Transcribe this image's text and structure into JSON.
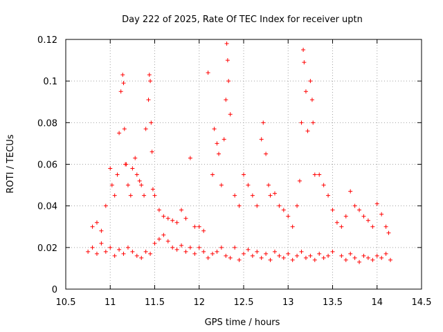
{
  "chart_data": {
    "type": "scatter",
    "title": "Day 222 of 2025, Rate Of TEC Index for receiver uptn",
    "xlabel": "GPS time / hours",
    "ylabel": "ROTI / TECUs",
    "xlim": [
      10.5,
      14.5
    ],
    "ylim": [
      0,
      0.12
    ],
    "x_ticks": [
      "10.5",
      "11",
      "11.5",
      "12",
      "12.5",
      "13",
      "13.5",
      "14",
      "14.5"
    ],
    "y_ticks": [
      "0",
      "0.02",
      "0.04",
      "0.06",
      "0.08",
      "0.1",
      "0.12"
    ],
    "grid": true,
    "marker": "+",
    "color": "#ff0000",
    "series": [
      {
        "x": [
          10.8,
          10.85,
          10.9,
          10.95,
          11.0,
          11.02,
          11.05,
          11.08,
          11.1,
          11.12,
          11.14,
          11.15,
          11.16,
          11.17,
          11.18,
          11.2,
          11.23,
          11.25,
          11.28,
          11.3,
          11.33,
          11.35,
          11.38,
          11.4,
          11.43,
          11.44,
          11.45,
          11.46,
          11.47,
          11.48,
          11.5,
          11.55,
          11.6,
          11.65,
          11.7,
          11.75,
          11.8,
          11.85,
          11.9,
          11.95,
          12.0,
          12.05,
          12.1,
          12.15,
          12.17,
          12.2,
          12.22,
          12.25,
          12.28,
          12.3,
          12.31,
          12.32,
          12.33,
          12.35,
          12.4,
          12.45,
          12.5,
          12.55,
          12.6,
          12.65,
          12.7,
          12.72,
          12.75,
          12.78,
          12.8,
          12.85,
          12.9,
          12.95,
          13.0,
          13.05,
          13.1,
          13.13,
          13.15,
          13.17,
          13.18,
          13.2,
          13.22,
          13.25,
          13.27,
          13.28,
          13.3,
          13.35,
          13.4,
          13.45,
          13.5,
          13.55,
          13.6,
          13.65,
          13.7,
          13.75,
          13.8,
          13.85,
          13.9,
          13.95,
          14.0,
          14.05,
          14.1,
          14.13
        ],
        "y": [
          0.03,
          0.032,
          0.028,
          0.04,
          0.058,
          0.05,
          0.045,
          0.055,
          0.075,
          0.095,
          0.103,
          0.099,
          0.077,
          0.06,
          0.06,
          0.05,
          0.045,
          0.058,
          0.063,
          0.055,
          0.052,
          0.05,
          0.045,
          0.077,
          0.091,
          0.103,
          0.1,
          0.08,
          0.066,
          0.048,
          0.045,
          0.038,
          0.035,
          0.034,
          0.033,
          0.032,
          0.038,
          0.034,
          0.063,
          0.03,
          0.03,
          0.028,
          0.104,
          0.055,
          0.077,
          0.07,
          0.065,
          0.05,
          0.072,
          0.091,
          0.118,
          0.11,
          0.1,
          0.084,
          0.045,
          0.04,
          0.055,
          0.05,
          0.045,
          0.04,
          0.072,
          0.08,
          0.065,
          0.05,
          0.045,
          0.046,
          0.04,
          0.038,
          0.035,
          0.03,
          0.04,
          0.052,
          0.08,
          0.115,
          0.109,
          0.095,
          0.076,
          0.1,
          0.091,
          0.08,
          0.055,
          0.055,
          0.05,
          0.045,
          0.038,
          0.032,
          0.03,
          0.035,
          0.047,
          0.04,
          0.038,
          0.035,
          0.033,
          0.03,
          0.041,
          0.036,
          0.03,
          0.027
        ]
      },
      {
        "x": [
          10.75,
          10.8,
          10.85,
          10.9,
          10.95,
          11.0,
          11.05,
          11.1,
          11.15,
          11.2,
          11.25,
          11.3,
          11.35,
          11.4,
          11.45,
          11.5,
          11.55,
          11.6,
          11.65,
          11.7,
          11.75,
          11.8,
          11.85,
          11.9,
          11.95,
          12.0,
          12.05,
          12.1,
          12.15,
          12.2,
          12.25,
          12.3,
          12.35,
          12.4,
          12.45,
          12.5,
          12.55,
          12.6,
          12.65,
          12.7,
          12.75,
          12.8,
          12.85,
          12.9,
          12.95,
          13.0,
          13.05,
          13.1,
          13.15,
          13.2,
          13.25,
          13.3,
          13.35,
          13.4,
          13.45,
          13.5,
          13.6,
          13.65,
          13.7,
          13.75,
          13.8,
          13.85,
          13.9,
          13.95,
          14.0,
          14.05,
          14.1,
          14.15
        ],
        "y": [
          0.018,
          0.02,
          0.017,
          0.022,
          0.018,
          0.02,
          0.016,
          0.019,
          0.017,
          0.02,
          0.018,
          0.016,
          0.015,
          0.018,
          0.017,
          0.022,
          0.024,
          0.026,
          0.023,
          0.02,
          0.019,
          0.021,
          0.018,
          0.02,
          0.017,
          0.02,
          0.018,
          0.015,
          0.017,
          0.018,
          0.02,
          0.016,
          0.015,
          0.02,
          0.014,
          0.017,
          0.019,
          0.016,
          0.018,
          0.015,
          0.017,
          0.014,
          0.018,
          0.016,
          0.015,
          0.017,
          0.014,
          0.016,
          0.018,
          0.015,
          0.016,
          0.014,
          0.017,
          0.015,
          0.016,
          0.018,
          0.016,
          0.014,
          0.017,
          0.015,
          0.013,
          0.016,
          0.015,
          0.014,
          0.016,
          0.015,
          0.017,
          0.014
        ]
      }
    ]
  }
}
